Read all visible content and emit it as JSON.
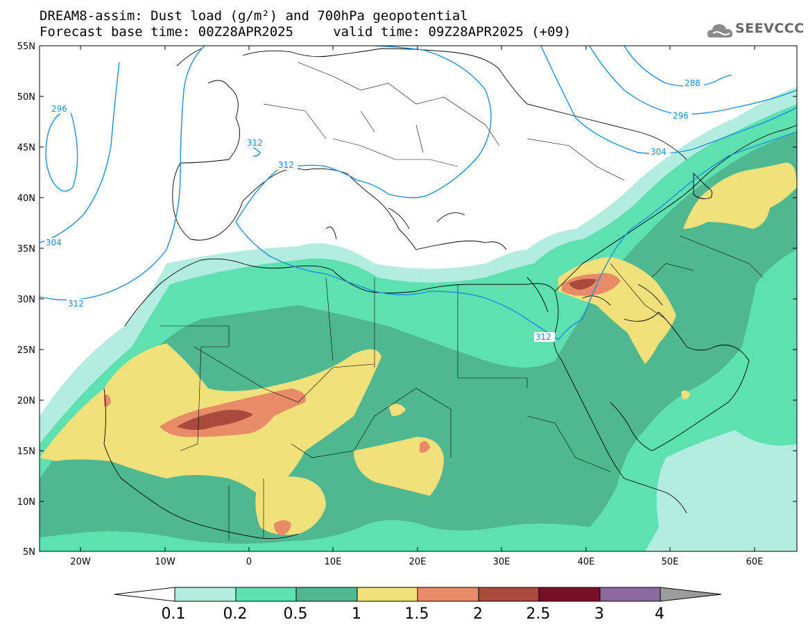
{
  "header": {
    "title_line": "DREAM8-assim: Dust load (g/m²) and 700hPa geopotential",
    "base_time_line": "Forecast base time: 00Z28APR2025     valid time: 09Z28APR2025 (+09)",
    "logo_text": "SEEVCCC",
    "logo_icon": "cloud-logo-icon"
  },
  "map": {
    "lat_labels": [
      "55N",
      "50N",
      "45N",
      "40N",
      "35N",
      "30N",
      "25N",
      "20N",
      "15N",
      "10N",
      "5N"
    ],
    "lon_labels": [
      "20W",
      "10W",
      "0",
      "10E",
      "20E",
      "30E",
      "40E",
      "50E",
      "60E"
    ],
    "contour_labels": [
      "296",
      "312",
      "312",
      "304",
      "312",
      "312",
      "288",
      "296",
      "304"
    ],
    "colors": {
      "coast": "#000000",
      "contour": "#1a8ee0"
    }
  },
  "colorbar": {
    "labels": [
      "0.1",
      "0.2",
      "0.5",
      "1",
      "1.5",
      "2",
      "2.5",
      "3",
      "4"
    ],
    "colors": [
      "#ffffff",
      "#b3ece0",
      "#5ee0b0",
      "#4fb890",
      "#f2e07a",
      "#e88c68",
      "#a84a3c",
      "#7a1028",
      "#8c6aa0",
      "#9c9c9c"
    ]
  }
}
